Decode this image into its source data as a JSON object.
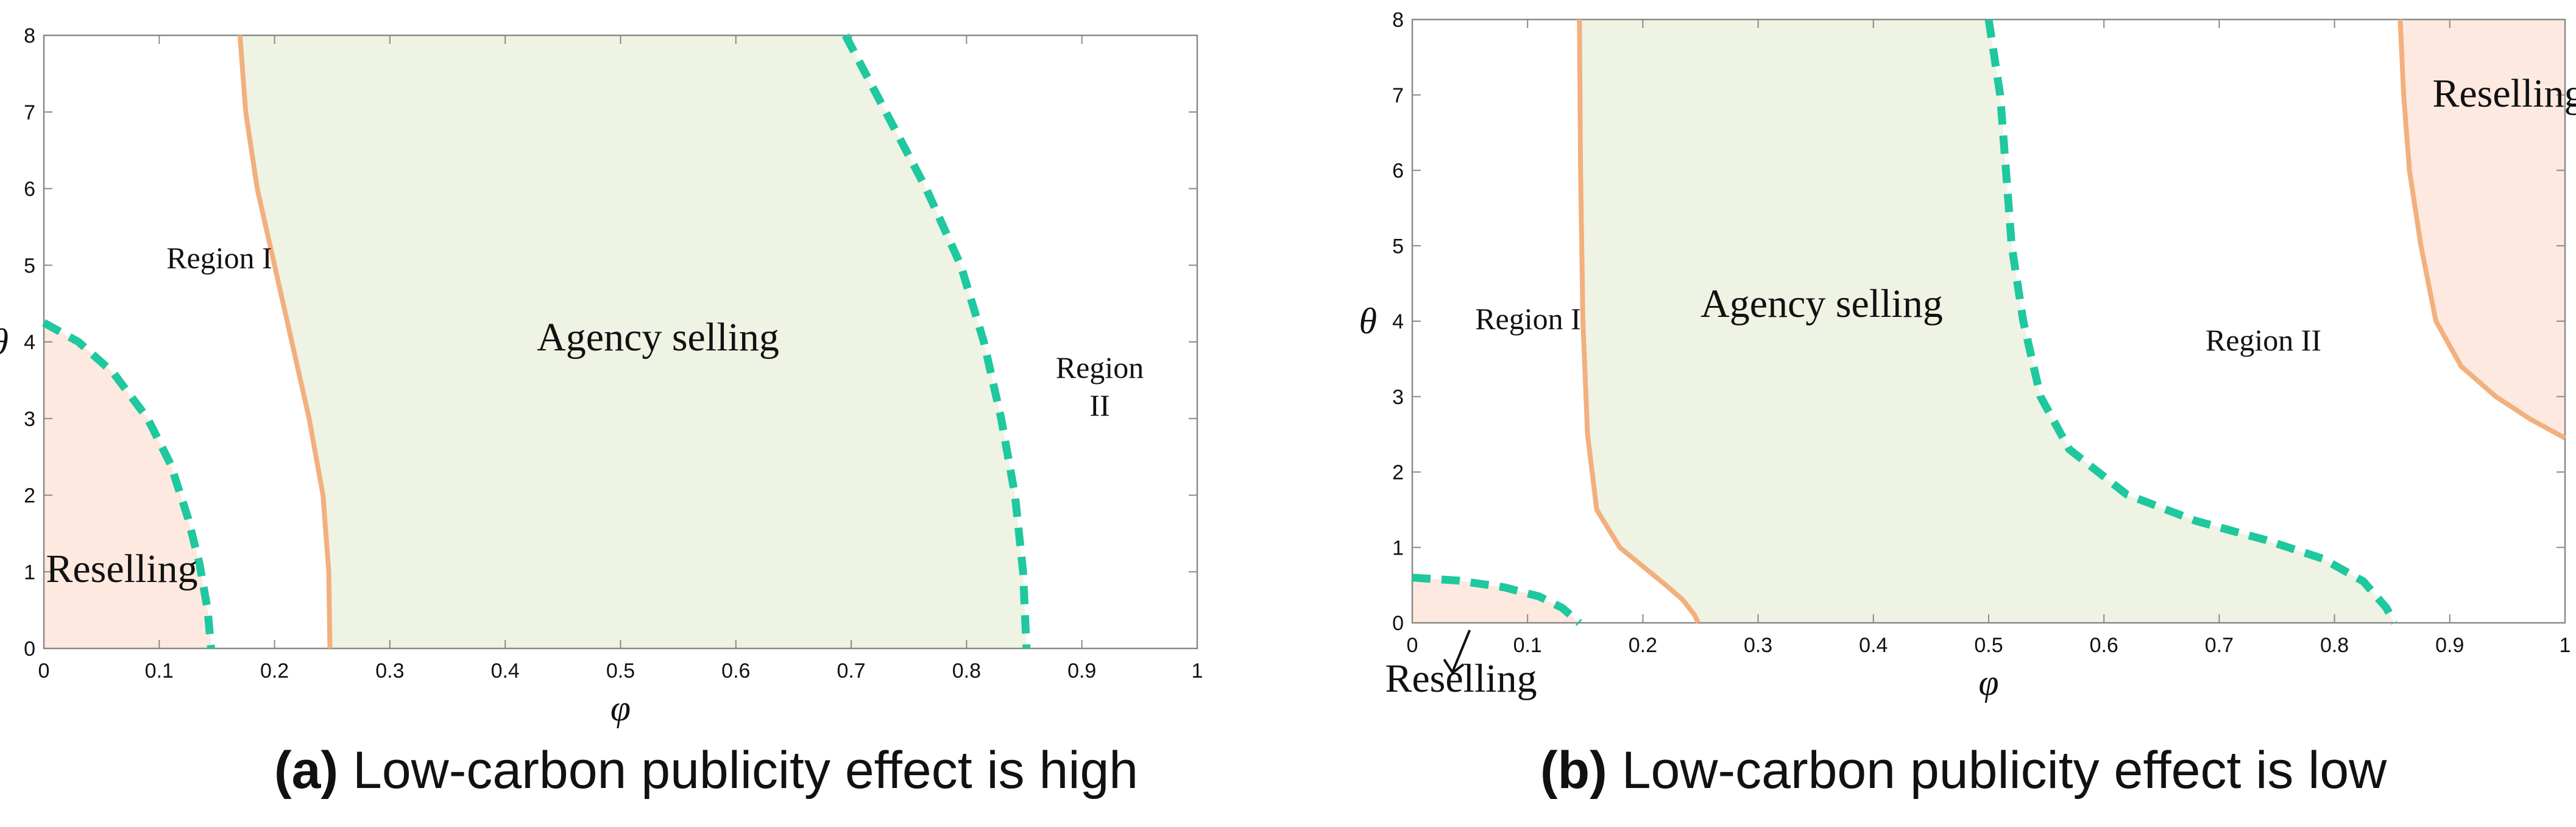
{
  "colors": {
    "agency_fill": "#eef3e4",
    "reselling_fill": "#fde9df",
    "solid_curve": "#f2b07e",
    "dashed_curve": "#1fc89e",
    "frame": "#8a8a8a"
  },
  "captions": {
    "a": {
      "letter": "(a)",
      "text": " Low-carbon publicity effect is high"
    },
    "b": {
      "letter": "(b)",
      "text": " Low-carbon publicity effect is low"
    }
  },
  "chart_data": [
    {
      "id": "a",
      "type": "area",
      "title": "Low-carbon publicity effect is high",
      "xlabel": "φ",
      "ylabel": "θ",
      "xlim": [
        0,
        1
      ],
      "ylim": [
        0,
        8
      ],
      "x_ticks": [
        "0",
        "0.1",
        "0.2",
        "0.3",
        "0.4",
        "0.5",
        "0.6",
        "0.7",
        "0.8",
        "0.9",
        "1"
      ],
      "y_ticks": [
        "0",
        "1",
        "2",
        "3",
        "4",
        "5",
        "6",
        "7",
        "8"
      ],
      "regions": [
        {
          "label": "Region I",
          "lines": [
            "Region I"
          ]
        },
        {
          "label": "Agency selling",
          "lines": [
            "Agency selling"
          ]
        },
        {
          "label": "Region II",
          "lines": [
            "Region",
            "II"
          ]
        },
        {
          "label": "Reselling",
          "lines": [
            "Reselling"
          ]
        }
      ],
      "series": [
        {
          "name": "reselling boundary (dashed)",
          "style": "dashed",
          "points": [
            [
              0,
              4.25
            ],
            [
              0.03,
              4.0
            ],
            [
              0.06,
              3.6
            ],
            [
              0.09,
              3.0
            ],
            [
              0.11,
              2.4
            ],
            [
              0.125,
              1.7
            ],
            [
              0.135,
              1.1
            ],
            [
              0.142,
              0.5
            ],
            [
              0.145,
              0
            ]
          ]
        },
        {
          "name": "agency lower boundary (solid)",
          "style": "solid",
          "points": [
            [
              0.17,
              8
            ],
            [
              0.175,
              7
            ],
            [
              0.185,
              6
            ],
            [
              0.2,
              5
            ],
            [
              0.215,
              4
            ],
            [
              0.23,
              3
            ],
            [
              0.242,
              2
            ],
            [
              0.247,
              1
            ],
            [
              0.248,
              0
            ]
          ]
        },
        {
          "name": "agency upper boundary (dashed)",
          "style": "dashed",
          "points": [
            [
              0.695,
              8
            ],
            [
              0.73,
              7
            ],
            [
              0.765,
              6
            ],
            [
              0.795,
              5
            ],
            [
              0.815,
              4
            ],
            [
              0.83,
              3
            ],
            [
              0.842,
              2
            ],
            [
              0.849,
              1
            ],
            [
              0.852,
              0
            ]
          ]
        }
      ]
    },
    {
      "id": "b",
      "type": "area",
      "title": "Low-carbon publicity effect is low",
      "xlabel": "φ",
      "ylabel": "θ",
      "xlim": [
        0,
        1
      ],
      "ylim": [
        0,
        8
      ],
      "x_ticks": [
        "0",
        "0.1",
        "0.2",
        "0.3",
        "0.4",
        "0.5",
        "0.6",
        "0.7",
        "0.8",
        "0.9",
        "1"
      ],
      "y_ticks": [
        "0",
        "1",
        "2",
        "3",
        "4",
        "5",
        "6",
        "7",
        "8"
      ],
      "regions": [
        {
          "label": "Region I",
          "lines": [
            "Region I"
          ]
        },
        {
          "label": "Agency selling",
          "lines": [
            "Agency selling"
          ]
        },
        {
          "label": "Region II",
          "lines": [
            "Region II"
          ]
        },
        {
          "label": "Reselling (top right)",
          "lines": [
            "Reselling"
          ]
        },
        {
          "label": "Reselling (bottom left, arrow)",
          "lines": [
            "Reselling"
          ]
        }
      ],
      "series": [
        {
          "name": "reselling boundary bottom (dashed)",
          "style": "dashed",
          "points": [
            [
              0,
              0.6
            ],
            [
              0.04,
              0.56
            ],
            [
              0.08,
              0.47
            ],
            [
              0.11,
              0.35
            ],
            [
              0.13,
              0.2
            ],
            [
              0.145,
              0
            ]
          ]
        },
        {
          "name": "agency lower boundary (solid)",
          "style": "solid",
          "points": [
            [
              0.145,
              8
            ],
            [
              0.146,
              6
            ],
            [
              0.148,
              4
            ],
            [
              0.152,
              2.5
            ],
            [
              0.16,
              1.5
            ],
            [
              0.18,
              1.0
            ],
            [
              0.2,
              0.75
            ],
            [
              0.22,
              0.5
            ],
            [
              0.235,
              0.3
            ],
            [
              0.245,
              0.1
            ],
            [
              0.248,
              0
            ]
          ]
        },
        {
          "name": "agency upper boundary (dashed)",
          "style": "dashed",
          "points": [
            [
              0.5,
              8
            ],
            [
              0.51,
              7
            ],
            [
              0.515,
              6
            ],
            [
              0.52,
              5
            ],
            [
              0.53,
              4
            ],
            [
              0.545,
              3
            ],
            [
              0.57,
              2.3
            ],
            [
              0.62,
              1.7
            ],
            [
              0.68,
              1.35
            ],
            [
              0.74,
              1.1
            ],
            [
              0.79,
              0.85
            ],
            [
              0.825,
              0.55
            ],
            [
              0.845,
              0.2
            ],
            [
              0.852,
              0
            ]
          ]
        },
        {
          "name": "reselling boundary top right (solid)",
          "style": "solid",
          "points": [
            [
              0.857,
              8
            ],
            [
              0.86,
              7
            ],
            [
              0.865,
              6
            ],
            [
              0.875,
              5
            ],
            [
              0.888,
              4
            ],
            [
              0.91,
              3.4
            ],
            [
              0.94,
              3.0
            ],
            [
              0.97,
              2.7
            ],
            [
              1.0,
              2.45
            ]
          ]
        }
      ]
    }
  ]
}
